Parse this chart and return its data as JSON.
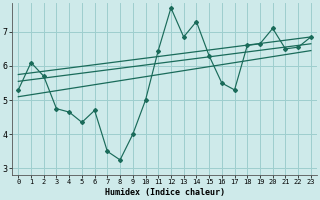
{
  "xlabel": "Humidex (Indice chaleur)",
  "background_color": "#ceeaea",
  "grid_color": "#9ecece",
  "line_color": "#1a6b5a",
  "xlim": [
    -0.5,
    23.5
  ],
  "ylim": [
    2.8,
    7.85
  ],
  "yticks": [
    3,
    4,
    5,
    6,
    7
  ],
  "xticks": [
    0,
    1,
    2,
    3,
    4,
    5,
    6,
    7,
    8,
    9,
    10,
    11,
    12,
    13,
    14,
    15,
    16,
    17,
    18,
    19,
    20,
    21,
    22,
    23
  ],
  "main_x": [
    0,
    1,
    2,
    3,
    4,
    5,
    6,
    7,
    8,
    9,
    10,
    11,
    12,
    13,
    14,
    15,
    16,
    17,
    18,
    19,
    20,
    21,
    22,
    23
  ],
  "main_y": [
    5.3,
    6.1,
    5.7,
    4.75,
    4.65,
    4.35,
    4.7,
    3.5,
    3.25,
    4.0,
    5.0,
    6.45,
    7.7,
    6.85,
    7.3,
    6.3,
    5.5,
    5.3,
    6.6,
    6.65,
    7.1,
    6.5,
    6.55,
    6.85
  ],
  "trend_lines": [
    {
      "x0": 0,
      "y0": 5.75,
      "x1": 23,
      "y1": 6.85
    },
    {
      "x0": 0,
      "y0": 5.55,
      "x1": 23,
      "y1": 6.65
    },
    {
      "x0": 0,
      "y0": 5.1,
      "x1": 23,
      "y1": 6.45
    }
  ]
}
